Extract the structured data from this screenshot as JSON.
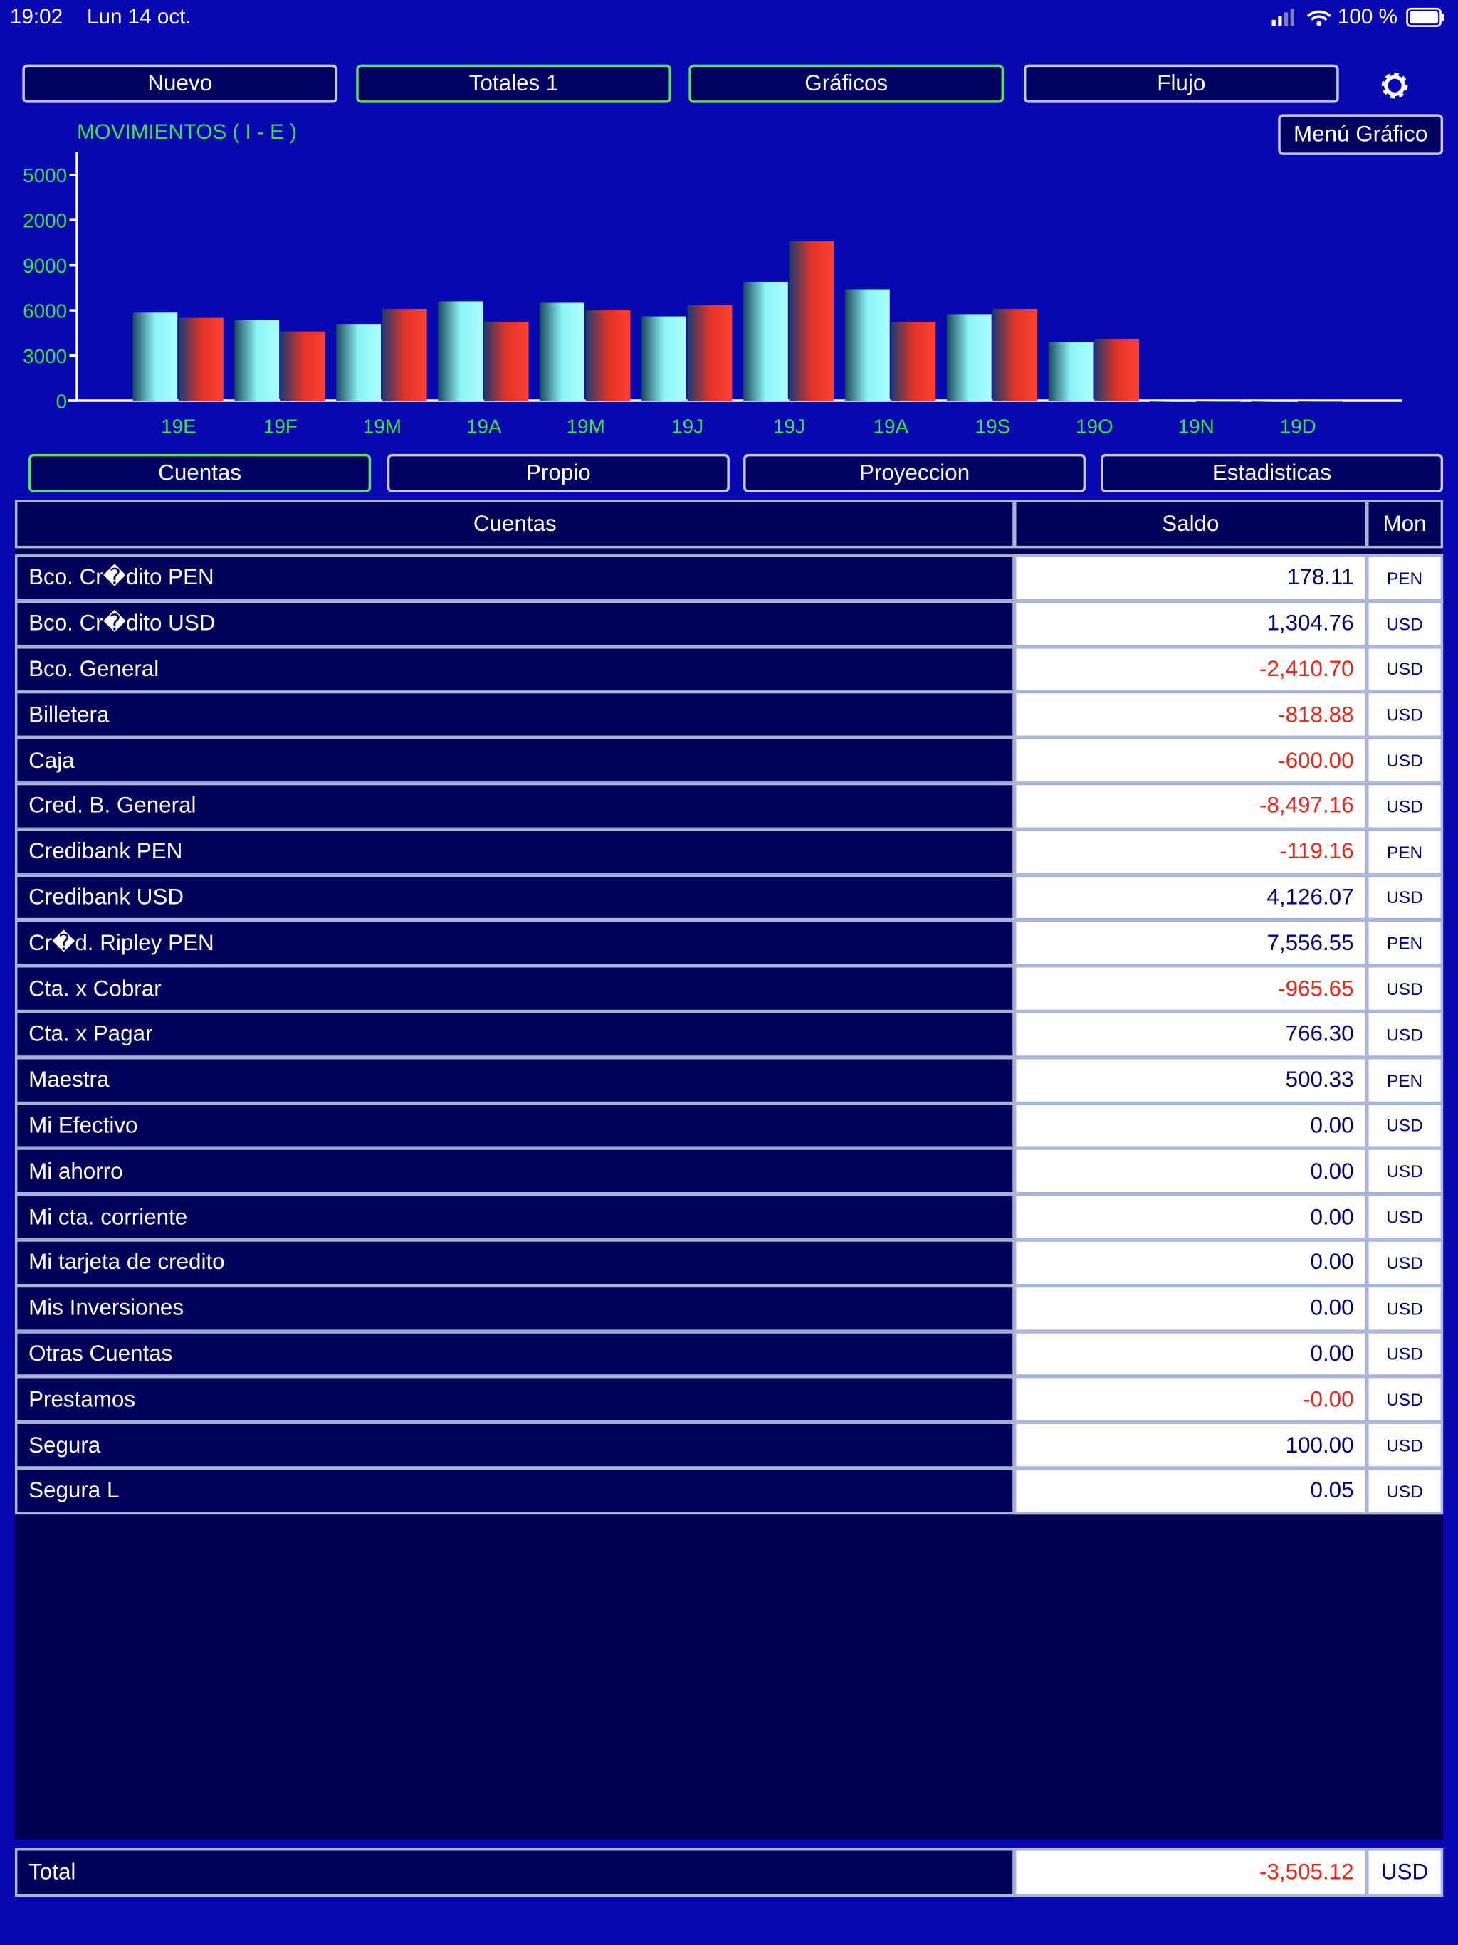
{
  "status_bar": {
    "time": "19:02",
    "date": "Lun 14 oct.",
    "battery": "100 %"
  },
  "top_tabs": [
    "Nuevo",
    "Totales 1",
    "Gráficos",
    "Flujo"
  ],
  "chart_menu": "Menú Gráfico",
  "chart_data": {
    "type": "bar",
    "title": "MOVIMIENTOS ( I - E )",
    "categories": [
      "19E",
      "19F",
      "19M",
      "19A",
      "19M",
      "19J",
      "19J",
      "19A",
      "19S",
      "19O",
      "19N",
      "19D"
    ],
    "series": [
      {
        "color": "#7ff8f8",
        "values": [
          5850,
          5350,
          5100,
          6600,
          6500,
          5600,
          7900,
          7400,
          5750,
          3900,
          0,
          0
        ]
      },
      {
        "color": "#f03a2e",
        "values": [
          5500,
          4600,
          6100,
          5250,
          6000,
          6350,
          10600,
          5250,
          6100,
          4100,
          0,
          0
        ]
      }
    ],
    "ylim": [
      0,
      16500
    ],
    "yticks": [
      0,
      3000,
      6000,
      9000,
      {
        "value": 12000,
        "label": "2000"
      },
      {
        "value": 15000,
        "label": "5000"
      }
    ]
  },
  "sub_tabs": [
    "Cuentas",
    "Propio",
    "Proyeccion",
    "Estadisticas"
  ],
  "table": {
    "header": [
      "Cuentas",
      "Saldo",
      "Mon"
    ],
    "rows": [
      [
        "Bco. Cr�dito PEN",
        "178.11",
        "PEN"
      ],
      [
        "Bco. Cr�dito USD",
        "1,304.76",
        "USD"
      ],
      [
        "Bco. General",
        "-2,410.70",
        "USD"
      ],
      [
        "Billetera",
        "-818.88",
        "USD"
      ],
      [
        "Caja",
        "-600.00",
        "USD"
      ],
      [
        "Cred. B. General",
        "-8,497.16",
        "USD"
      ],
      [
        "Credibank PEN",
        "-119.16",
        "PEN"
      ],
      [
        "Credibank USD",
        "4,126.07",
        "USD"
      ],
      [
        "Cr�d. Ripley PEN",
        "7,556.55",
        "PEN"
      ],
      [
        "Cta. x Cobrar",
        "-965.65",
        "USD"
      ],
      [
        "Cta. x Pagar",
        "766.30",
        "USD"
      ],
      [
        "Maestra",
        "500.33",
        "PEN"
      ],
      [
        "Mi Efectivo",
        "0.00",
        "USD"
      ],
      [
        "Mi ahorro",
        "0.00",
        "USD"
      ],
      [
        "Mi cta. corriente",
        "0.00",
        "USD"
      ],
      [
        "Mi tarjeta de credito",
        "0.00",
        "USD"
      ],
      [
        "Mis Inversiones",
        "0.00",
        "USD"
      ],
      [
        "Otras Cuentas",
        "0.00",
        "USD"
      ],
      [
        "Prestamos",
        "-0.00",
        "USD"
      ],
      [
        "Segura",
        "100.00",
        "USD"
      ],
      [
        "Segura L",
        "0.05",
        "USD"
      ]
    ]
  },
  "total": {
    "label": "Total",
    "value": "-3,505.12",
    "currency": "USD"
  }
}
